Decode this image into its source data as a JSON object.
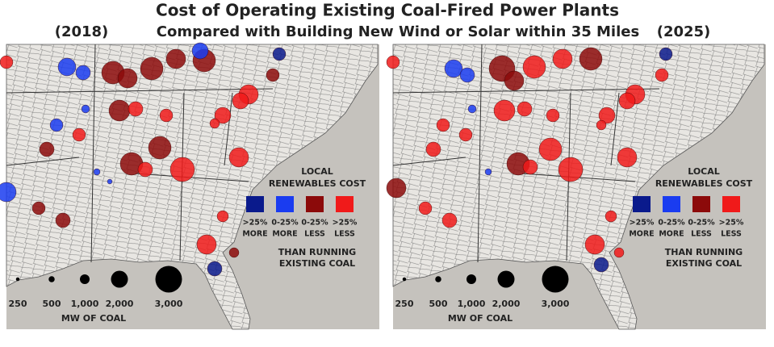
{
  "header": {
    "title": "Cost of Operating Existing Coal-Fired Power Plants",
    "left_year": "(2018)",
    "subtitle": "Compared with Building New Wind or Solar within 35 Miles",
    "right_year": "(2025)"
  },
  "legend": {
    "heading": [
      "LOCAL",
      "RENEWABLES COST"
    ],
    "items": [
      {
        "label": [
          ">25%",
          "MORE"
        ],
        "color": "#0a1a8c"
      },
      {
        "label": [
          "0-25%",
          "MORE"
        ],
        "color": "#1a3cf0"
      },
      {
        "label": [
          "0-25%",
          "LESS"
        ],
        "color": "#8c0a0a"
      },
      {
        "label": [
          ">25%",
          "LESS"
        ],
        "color": "#f01a1a"
      }
    ],
    "footer": [
      "THAN RUNNING",
      "EXISTING COAL"
    ]
  },
  "size_legend": {
    "labels": [
      "250",
      "500",
      "1,000",
      "2,000",
      "3,000"
    ],
    "caption": "MW OF COAL"
  }
}
